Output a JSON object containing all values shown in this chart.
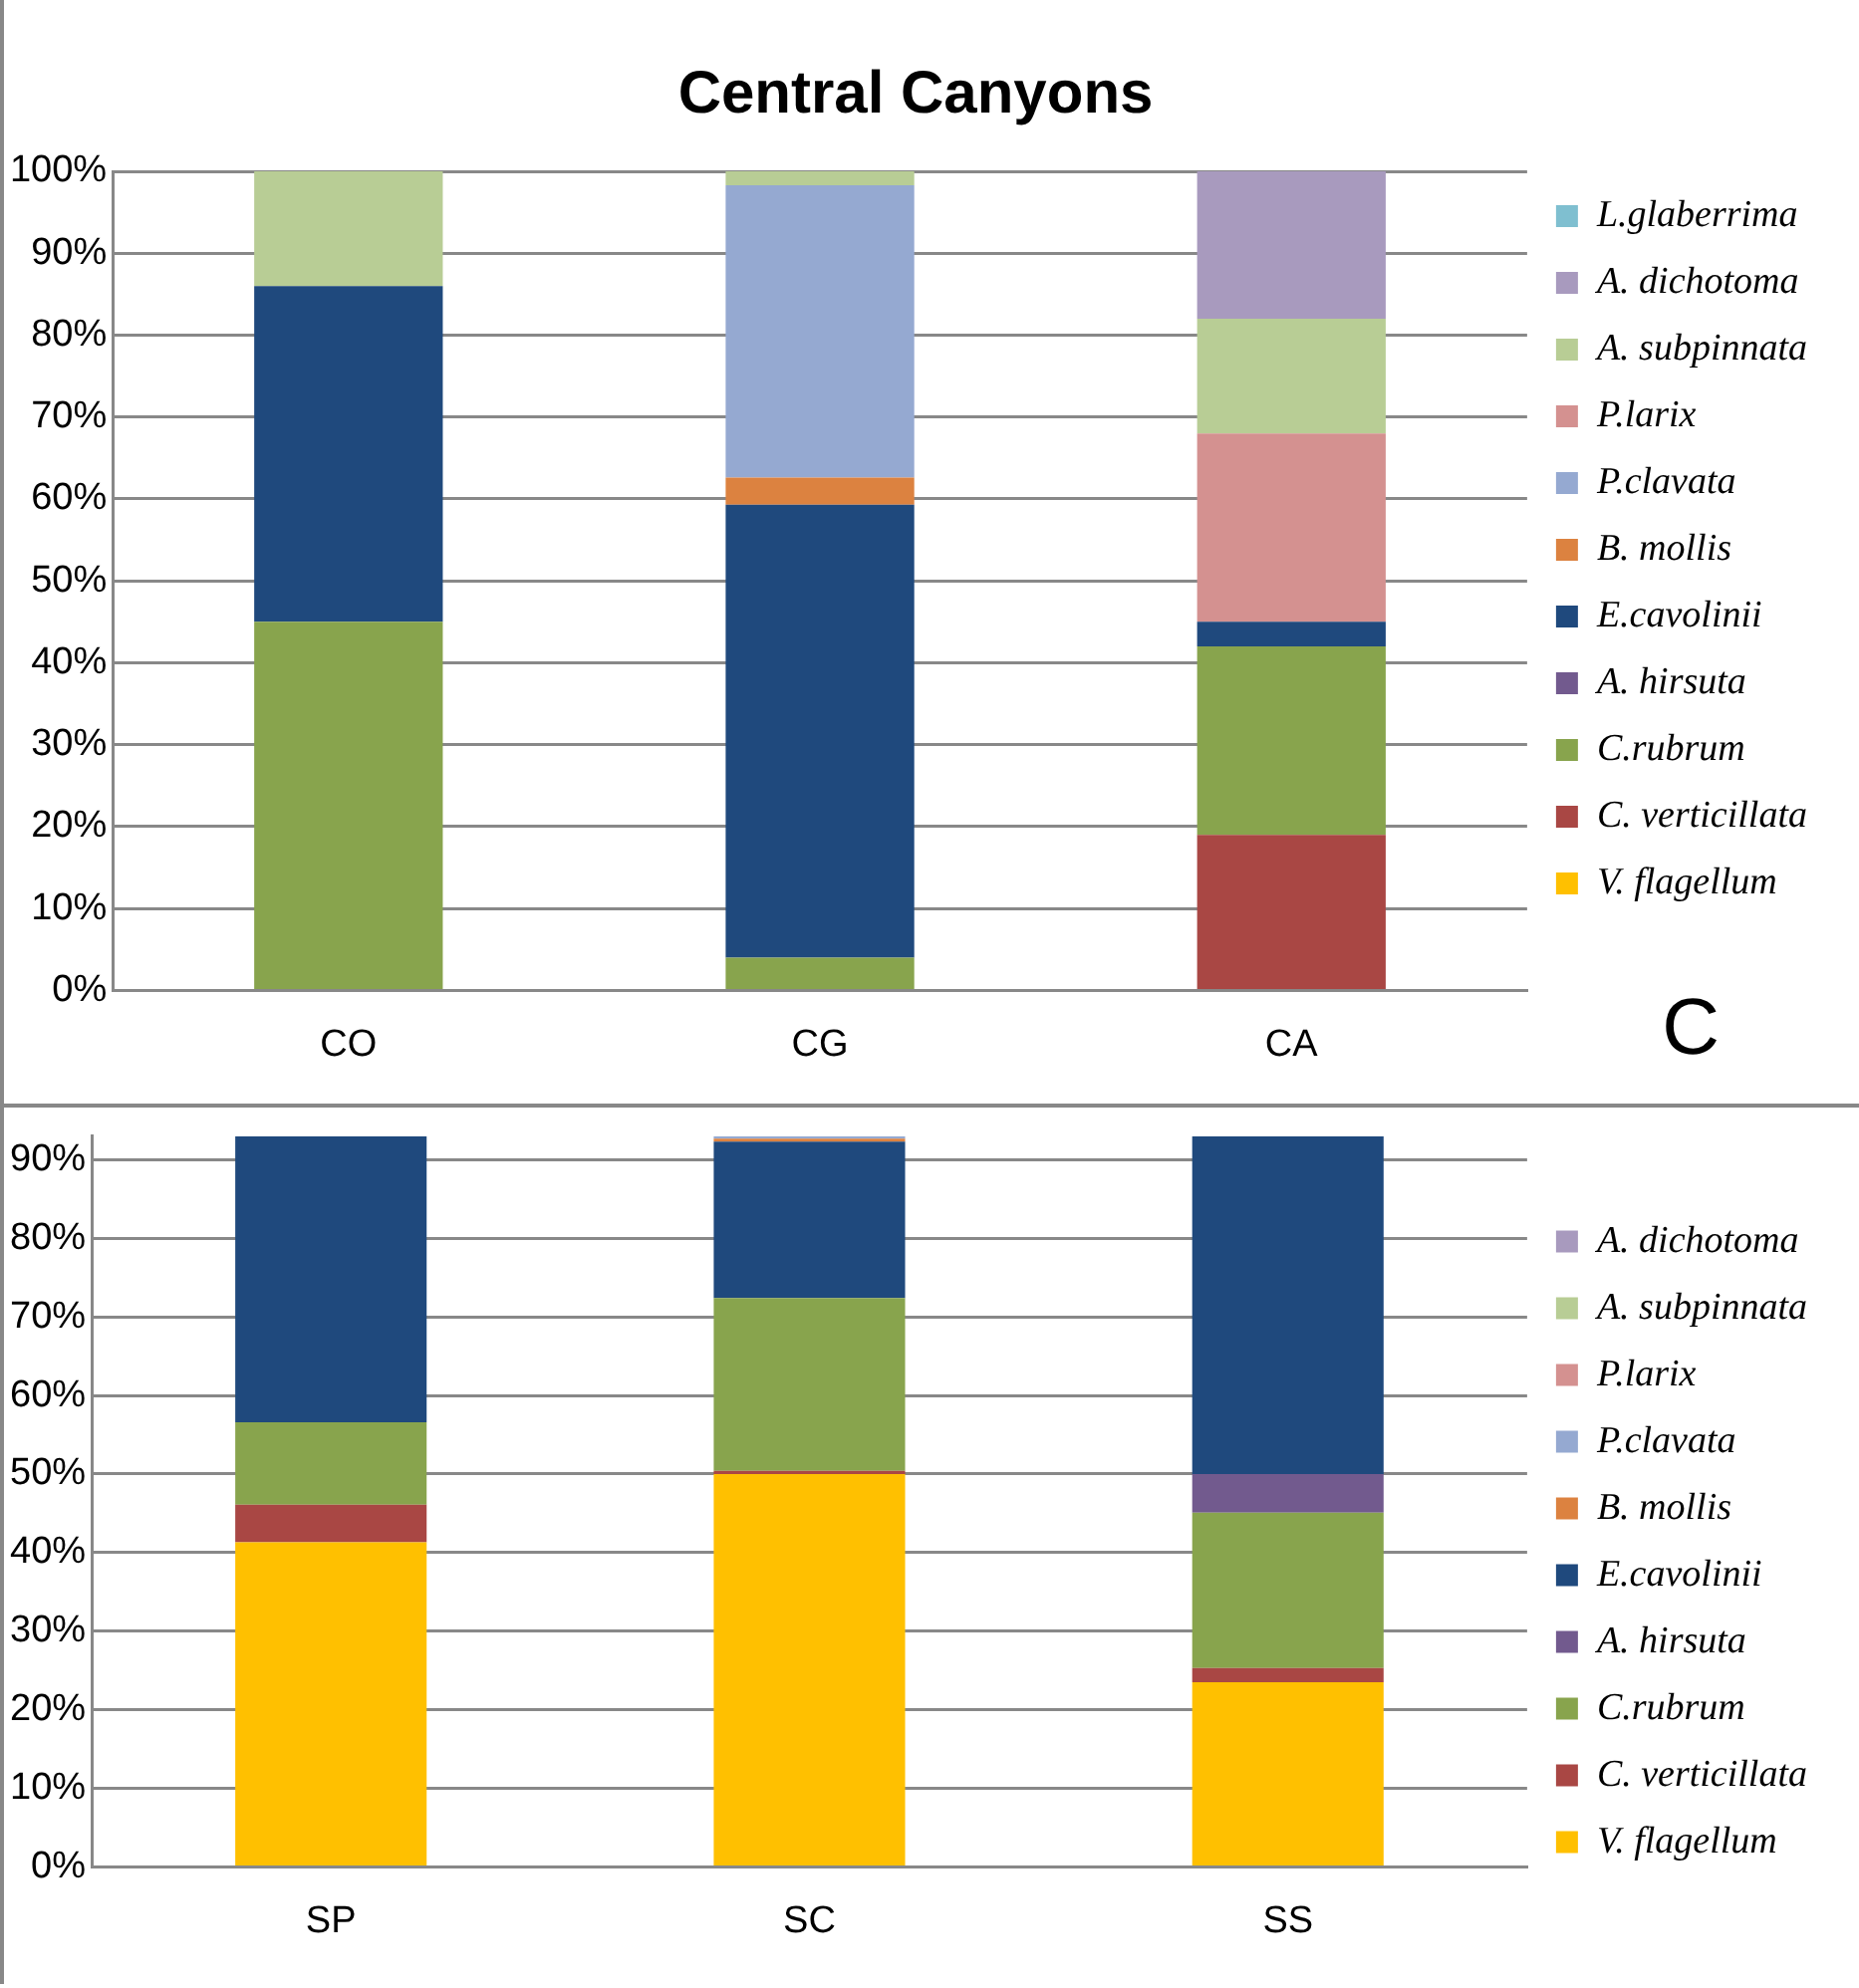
{
  "chart_data": [
    {
      "type": "bar",
      "title": "Central Canyons",
      "stacked": true,
      "categories": [
        "CO",
        "CG",
        "CA"
      ],
      "ylim": [
        0,
        100
      ],
      "yticks": [
        {
          "value": 0,
          "label": "0%"
        },
        {
          "value": 10,
          "label": "10%"
        },
        {
          "value": 20,
          "label": "20%"
        },
        {
          "value": 30,
          "label": "30%"
        },
        {
          "value": 40,
          "label": "40%"
        },
        {
          "value": 50,
          "label": "50%"
        },
        {
          "value": 60,
          "label": "60%"
        },
        {
          "value": 70,
          "label": "70%"
        },
        {
          "value": 80,
          "label": "80%"
        },
        {
          "value": 90,
          "label": "90%"
        },
        {
          "value": 100,
          "label": "100%"
        }
      ],
      "grid": "y",
      "legend": "right",
      "annotations": [
        "C"
      ],
      "series": [
        {
          "name": "V. flagellum",
          "color": "#ffc000",
          "values": [
            0,
            0,
            0
          ]
        },
        {
          "name": "C. verticillata",
          "color": "#a94744",
          "values": [
            0,
            0,
            19
          ]
        },
        {
          "name": "C.rubrum",
          "color": "#88a44d",
          "values": [
            45,
            4,
            23
          ]
        },
        {
          "name": "A. hirsuta",
          "color": "#725a8e",
          "values": [
            0,
            0,
            0
          ]
        },
        {
          "name": "E.cavolinii",
          "color": "#1f497d",
          "values": [
            41,
            55.3,
            3
          ]
        },
        {
          "name": "B. mollis",
          "color": "#dc8240",
          "values": [
            0,
            3.3,
            0
          ]
        },
        {
          "name": "P.clavata",
          "color": "#95a9d1",
          "values": [
            0,
            35.7,
            0
          ]
        },
        {
          "name": "P.larix",
          "color": "#d49190",
          "values": [
            0,
            0,
            23
          ]
        },
        {
          "name": "A. subpinnata",
          "color": "#b8cd95",
          "values": [
            14,
            1.7,
            14
          ]
        },
        {
          "name": "A. dichotoma",
          "color": "#a89abe",
          "values": [
            0,
            0,
            18
          ]
        },
        {
          "name": "L.glaberrima",
          "color": "#7fbfd0",
          "values": [
            0,
            0,
            0
          ]
        }
      ]
    },
    {
      "type": "bar",
      "stacked": true,
      "categories": [
        "SP",
        "SC",
        "SS"
      ],
      "ylim": [
        0,
        93
      ],
      "yticks": [
        {
          "value": 0,
          "label": "0%"
        },
        {
          "value": 10,
          "label": "10%"
        },
        {
          "value": 20,
          "label": "20%"
        },
        {
          "value": 30,
          "label": "30%"
        },
        {
          "value": 40,
          "label": "40%"
        },
        {
          "value": 50,
          "label": "50%"
        },
        {
          "value": 60,
          "label": "60%"
        },
        {
          "value": 70,
          "label": "70%"
        },
        {
          "value": 80,
          "label": "80%"
        },
        {
          "value": 90,
          "label": "90%"
        }
      ],
      "grid": "y",
      "legend": "right",
      "series": [
        {
          "name": "V. flagellum",
          "color": "#ffc000",
          "values": [
            41.3,
            50,
            23.5
          ]
        },
        {
          "name": "C. verticillata",
          "color": "#a94744",
          "values": [
            4.8,
            0.4,
            1.8
          ]
        },
        {
          "name": "C.rubrum",
          "color": "#88a44d",
          "values": [
            10.5,
            22,
            19.8
          ]
        },
        {
          "name": "A. hirsuta",
          "color": "#725a8e",
          "values": [
            0,
            0,
            4.9
          ]
        },
        {
          "name": "E.cavolinii",
          "color": "#1f497d",
          "values": [
            36.4,
            19.9,
            43
          ]
        },
        {
          "name": "B. mollis",
          "color": "#dc8240",
          "values": [
            0,
            0.4,
            0
          ]
        },
        {
          "name": "P.clavata",
          "color": "#95a9d1",
          "values": [
            0,
            0.3,
            0
          ]
        },
        {
          "name": "P.larix",
          "color": "#d49190",
          "values": [
            0,
            0,
            0
          ]
        },
        {
          "name": "A. subpinnata",
          "color": "#b8cd95",
          "values": [
            0,
            0,
            0
          ]
        },
        {
          "name": "A. dichotoma",
          "color": "#a89abe",
          "values": [
            0,
            0,
            0
          ]
        }
      ]
    }
  ]
}
